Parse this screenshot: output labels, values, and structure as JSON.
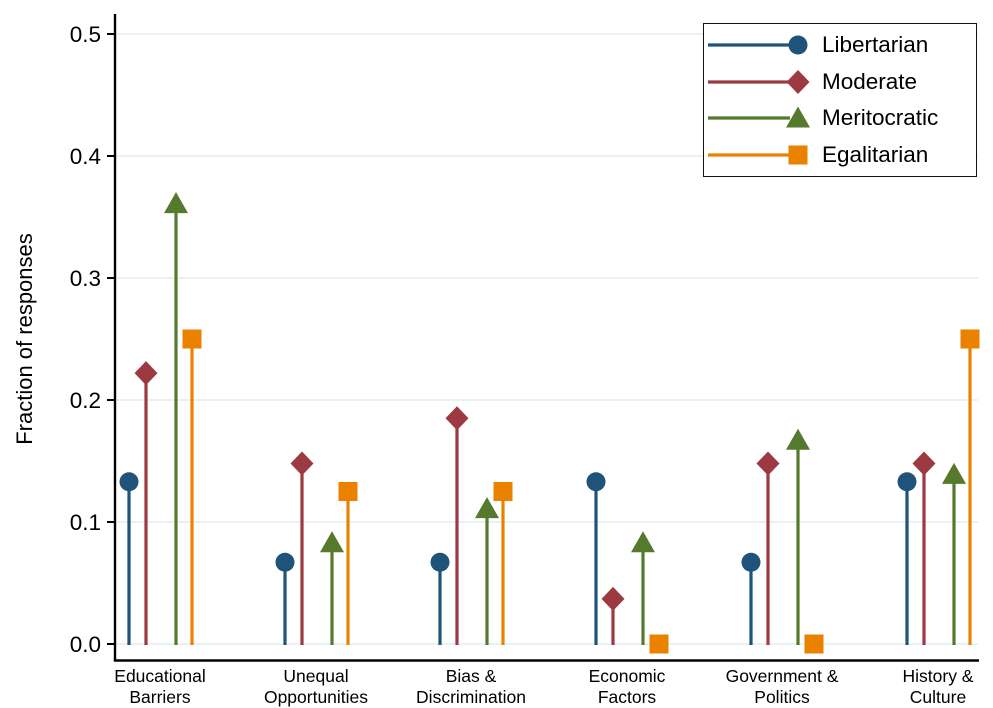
{
  "chart_data": {
    "type": "lollipop",
    "title": "",
    "ylabel": "Fraction of responses",
    "xlabel": "",
    "categories": [
      "Educational Barriers",
      "Unequal Opportunities",
      "Bias & Discrimination",
      "Economic Factors",
      "Government & Politics",
      "History & Culture"
    ],
    "category_lines": [
      [
        "Educational",
        "Barriers"
      ],
      [
        "Unequal",
        "Opportunities"
      ],
      [
        "Bias &",
        "Discrimination"
      ],
      [
        "Economic",
        "Factors"
      ],
      [
        "Government &",
        "Politics"
      ],
      [
        "History &",
        "Culture"
      ]
    ],
    "yticks": [
      "0.0",
      "0.1",
      "0.2",
      "0.3",
      "0.4",
      "0.5"
    ],
    "ylim": [
      0,
      0.52
    ],
    "grid": true,
    "legend_position": "top-right",
    "colors": {
      "axis": "#000000",
      "grid": "#e6f0f1",
      "background": "#ffffff"
    },
    "series": [
      {
        "name": "Libertarian",
        "marker": "circle",
        "color": "#1f537a",
        "values": [
          0.133,
          0.067,
          0.067,
          0.133,
          0.067,
          0.133
        ]
      },
      {
        "name": "Moderate",
        "marker": "diamond",
        "color": "#9d3a41",
        "values": [
          0.222,
          0.148,
          0.185,
          0.037,
          0.148,
          0.148
        ]
      },
      {
        "name": "Meritocratic",
        "marker": "triangle",
        "color": "#557a2e",
        "values": [
          0.361,
          0.083,
          0.111,
          0.083,
          0.167,
          0.139
        ]
      },
      {
        "name": "Egalitarian",
        "marker": "square",
        "color": "#ea8200",
        "values": [
          0.25,
          0.125,
          0.125,
          0.0,
          0.0,
          0.25
        ]
      }
    ]
  }
}
